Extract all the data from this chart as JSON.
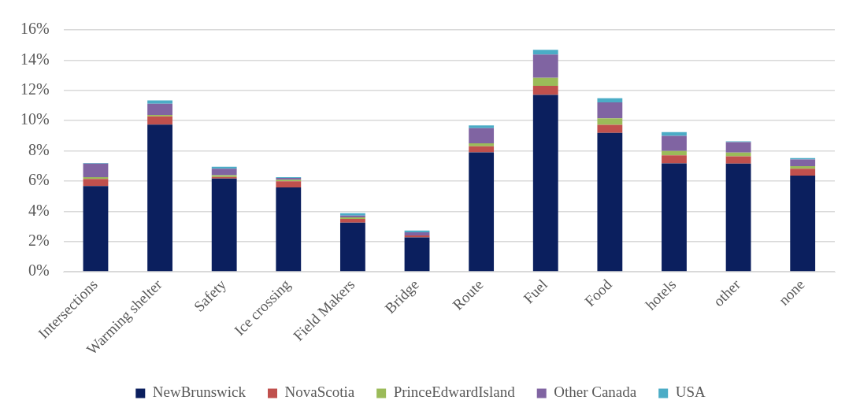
{
  "chart_data": {
    "type": "bar",
    "stacked": true,
    "categories": [
      "Intersections",
      "Warming shelter",
      "Safety",
      "Ice crossing",
      "Field Makers",
      "Bridge",
      "Route",
      "Fuel",
      "Food",
      "hotels",
      "other",
      "none"
    ],
    "series": [
      {
        "name": "NewBrunswick",
        "color": "#0b1f5e",
        "values": [
          5.67,
          9.73,
          6.16,
          5.58,
          3.25,
          2.27,
          7.9,
          11.7,
          9.19,
          7.17,
          7.16,
          6.36
        ]
      },
      {
        "name": "NovaScotia",
        "color": "#c0504d",
        "values": [
          0.47,
          0.55,
          0.11,
          0.4,
          0.24,
          0.13,
          0.4,
          0.6,
          0.53,
          0.53,
          0.47,
          0.45
        ]
      },
      {
        "name": "PrinceEdwardIsland",
        "color": "#9bbb59",
        "values": [
          0.11,
          0.09,
          0.12,
          0.1,
          0.11,
          null,
          0.2,
          0.54,
          0.43,
          0.29,
          0.25,
          0.18
        ]
      },
      {
        "name": "Other Canada",
        "color": "#8064a2",
        "values": [
          0.91,
          0.75,
          0.42,
          0.13,
          0.12,
          0.21,
          1.0,
          1.53,
          1.06,
          1.0,
          0.69,
          0.44
        ]
      },
      {
        "name": "USA",
        "color": "#4bacc6",
        "values": [
          0.04,
          0.21,
          0.13,
          0.04,
          0.15,
          0.11,
          0.18,
          0.32,
          0.27,
          0.25,
          0.06,
          0.09
        ]
      }
    ],
    "ylim": [
      0,
      16
    ],
    "yticks": [
      {
        "value": 0,
        "label": "0%"
      },
      {
        "value": 2,
        "label": "2%"
      },
      {
        "value": 4,
        "label": "4%"
      },
      {
        "value": 6,
        "label": "6%"
      },
      {
        "value": 8,
        "label": "8%"
      },
      {
        "value": 10,
        "label": "10%"
      },
      {
        "value": 12,
        "label": "12%"
      },
      {
        "value": 14,
        "label": "14%"
      },
      {
        "value": 16,
        "label": "16%"
      }
    ],
    "grid": "y",
    "legend": "bottom"
  }
}
